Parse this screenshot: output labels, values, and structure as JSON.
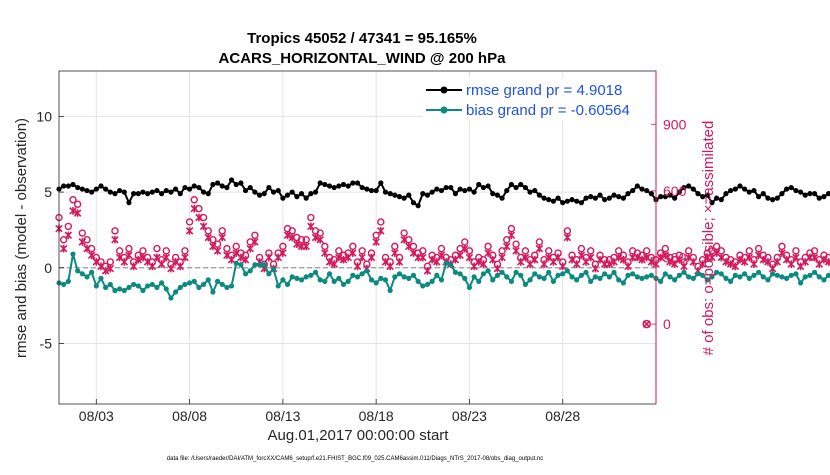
{
  "chart_data": {
    "type": "line",
    "title": "Tropics 45052 / 47341 = 95.165%",
    "subtitle": "ACARS_HORIZONTAL_WIND @ 200 hPa",
    "xlabel": "Aug.01,2017 00:00:00 start",
    "ylabel": "rmse and bias (model - observation)",
    "ylabel_right": "# of obs: o=possible; ×=assimilated",
    "xlim": [
      0,
      32
    ],
    "ylim": [
      -9,
      13
    ],
    "ylim_right": [
      -360,
      1140
    ],
    "x_ticks": [
      {
        "value": 2,
        "label": "08/03"
      },
      {
        "value": 7,
        "label": "08/08"
      },
      {
        "value": 12,
        "label": "08/13"
      },
      {
        "value": 17,
        "label": "08/18"
      },
      {
        "value": 22,
        "label": "08/23"
      },
      {
        "value": 27,
        "label": "08/28"
      }
    ],
    "y_ticks": [
      {
        "value": -5,
        "label": "-5"
      },
      {
        "value": 0,
        "label": "0"
      },
      {
        "value": 5,
        "label": "5"
      },
      {
        "value": 10,
        "label": "10"
      }
    ],
    "y_ticks_right": [
      {
        "value": 0,
        "label": "0"
      },
      {
        "value": 300,
        "label": "300"
      },
      {
        "value": 600,
        "label": "600"
      },
      {
        "value": 900,
        "label": "900"
      }
    ],
    "zero_line": 0,
    "legend_position": "top-right",
    "series": [
      {
        "name": "rmse grand pr = 4.9018",
        "axis": "left",
        "color": "#000000",
        "x0": 0.0,
        "dx": 0.25,
        "values": [
          5.2,
          5.4,
          5.4,
          5.5,
          5.3,
          5.2,
          5.1,
          5.0,
          5.2,
          5.4,
          5.2,
          5.0,
          4.9,
          5.1,
          5.0,
          4.3,
          4.9,
          4.9,
          5.0,
          4.9,
          5.0,
          5.1,
          4.9,
          5.1,
          5.0,
          5.2,
          4.9,
          5.3,
          5.2,
          5.4,
          5.3,
          5.0,
          4.9,
          5.5,
          5.6,
          5.4,
          5.3,
          5.8,
          5.5,
          5.6,
          5.1,
          5.3,
          5.0,
          4.8,
          4.9,
          5.3,
          5.0,
          5.1,
          4.6,
          4.8,
          5.0,
          4.7,
          4.9,
          4.6,
          4.9,
          5.0,
          5.6,
          5.5,
          5.4,
          5.3,
          5.4,
          5.5,
          5.4,
          5.6,
          5.6,
          5.3,
          5.2,
          5.1,
          5.1,
          5.6,
          5.0,
          4.9,
          4.8,
          4.7,
          4.6,
          4.8,
          4.3,
          4.1,
          4.9,
          4.8,
          5.0,
          5.2,
          5.1,
          5.3,
          5.3,
          4.9,
          5.2,
          5.1,
          5.2,
          5.0,
          5.5,
          5.3,
          5.4,
          4.9,
          4.8,
          4.6,
          5.1,
          5.5,
          5.3,
          5.5,
          5.3,
          5.0,
          5.1,
          4.8,
          4.6,
          4.5,
          4.4,
          4.6,
          4.3,
          4.4,
          4.5,
          4.4,
          4.3,
          4.6,
          4.7,
          4.6,
          4.8,
          4.5,
          4.6,
          4.8,
          4.7,
          4.6,
          4.9,
          5.1,
          5.4,
          5.2,
          5.1,
          4.9,
          4.5,
          4.7,
          4.7,
          4.8,
          4.6,
          5.0,
          5.3,
          5.4,
          5.2,
          4.9,
          4.7,
          4.8,
          4.3,
          4.6,
          4.5,
          4.9,
          5.1,
          5.2,
          5.4,
          5.2,
          5.0,
          5.1,
          4.7,
          4.9,
          4.6,
          4.5,
          4.6,
          4.9,
          5.2,
          5.3,
          5.1,
          5.0,
          4.8,
          4.9,
          4.9,
          4.6,
          4.7,
          4.9,
          5.0,
          5.2,
          5.1,
          4.9,
          4.8,
          5.0,
          5.1,
          4.7,
          4.9,
          4.8,
          4.6,
          4.8,
          5.2,
          5.4,
          4.9,
          4.8,
          4.7,
          5.0,
          5.1,
          4.9,
          5.0,
          4.8,
          5.2,
          5.1,
          4.9,
          5.0,
          5.2,
          5.1,
          5.2,
          5.1,
          4.9,
          4.8,
          5.0,
          4.9,
          4.8,
          4.9,
          5.0,
          5.1,
          5.0,
          5.1,
          5.2,
          5.0,
          5.1,
          4.9,
          4.8,
          4.9,
          5.0,
          5.1,
          5.1,
          4.9,
          5.1,
          5.0,
          5.2,
          5.1,
          4.9,
          5.1,
          5.0,
          4.9,
          4.8,
          5.1,
          5.0,
          5.1,
          4.9,
          5.2,
          4.9,
          5.1,
          5.0,
          4.9,
          5.1,
          5.0,
          4.9,
          4.9,
          5.2,
          5.0,
          4.8,
          5.1,
          5.0,
          4.9,
          5.0,
          4.8,
          4.9,
          5.0,
          5.2,
          5.1,
          4.9,
          5.0,
          4.8,
          4.9,
          5.1,
          5.0,
          4.9,
          5.1,
          5.0,
          4.9,
          5.0,
          5.2
        ]
      },
      {
        "name": "bias grand pr = -0.60564",
        "axis": "left",
        "color": "#0b8a80",
        "x0": 0.0,
        "dx": 0.25,
        "values": [
          -1.0,
          -1.1,
          -0.9,
          0.9,
          -0.2,
          -0.4,
          -0.6,
          -0.3,
          -1.2,
          -0.7,
          -1.3,
          -1.1,
          -1.5,
          -1.4,
          -1.5,
          -1.3,
          -1.1,
          -1.2,
          -1.5,
          -1.2,
          -1.1,
          -1.3,
          -1.0,
          -1.4,
          -2.0,
          -1.6,
          -1.3,
          -1.1,
          -1.0,
          -0.9,
          -1.3,
          -1.1,
          -0.8,
          -1.6,
          -0.9,
          -1.1,
          -1.3,
          -1.2,
          0.3,
          0.2,
          -0.4,
          -0.2,
          0.2,
          0.2,
          0.2,
          -0.4,
          -0.1,
          -1.2,
          -0.8,
          -1.1,
          -0.6,
          -0.7,
          -0.8,
          -0.6,
          -0.5,
          -0.3,
          -0.8,
          -0.9,
          -0.4,
          -0.9,
          -0.7,
          -1.1,
          -0.9,
          -0.5,
          -0.6,
          -0.4,
          -0.2,
          -0.8,
          -1.0,
          -0.7,
          -0.8,
          -1.5,
          -0.6,
          -0.4,
          -0.6,
          -0.7,
          -0.5,
          -0.9,
          -1.2,
          -1.1,
          -0.9,
          -0.5,
          -0.8,
          0.3,
          0.2,
          -0.3,
          -0.4,
          -0.7,
          -1.3,
          -0.6,
          -0.9,
          -0.4,
          -0.2,
          -0.8,
          -0.5,
          -0.3,
          -0.6,
          -0.9,
          -0.3,
          -0.5,
          -1.1,
          -0.8,
          -0.4,
          -0.6,
          -0.7,
          -0.3,
          -0.9,
          -0.5,
          -0.4,
          -0.2,
          -0.6,
          -0.8,
          -0.5,
          -0.3,
          -0.9,
          -0.6,
          -0.7,
          -0.4,
          -0.6,
          -0.3,
          -0.8,
          -1.0,
          -0.5,
          -0.4,
          -0.6,
          -0.7,
          -0.6,
          -0.5,
          -0.7,
          -0.9,
          -0.4,
          -0.6,
          -0.8,
          -0.5,
          -0.3,
          -0.6,
          -0.7,
          -0.4,
          -0.5,
          -0.8,
          -0.6,
          -0.3,
          -0.4,
          -0.7,
          -0.9,
          -0.5,
          -0.6,
          -0.4,
          -0.7,
          -0.5,
          -0.3,
          -0.6,
          -0.8,
          -0.4,
          -0.5,
          -0.6,
          -0.7,
          -0.5,
          -0.4,
          -1.0,
          -0.6,
          -0.5,
          -0.3,
          -0.6,
          -0.8,
          -0.5,
          -0.7,
          -0.4,
          -0.9,
          -0.5,
          -0.6,
          -0.4,
          -0.7,
          -0.8,
          -0.5,
          -0.6,
          -0.3,
          -0.7,
          -0.5,
          -0.6,
          -0.4,
          -0.9,
          -0.5,
          -0.6,
          -0.8,
          -0.4,
          -0.5,
          -0.7,
          -0.6,
          -0.3,
          -0.5,
          -0.8,
          -0.6,
          -0.4,
          -0.7,
          -0.5,
          -0.6,
          -0.8,
          -0.4,
          -0.3,
          -0.6,
          -0.7,
          -0.5,
          -0.4,
          -0.9,
          -0.6,
          -0.5,
          -0.3,
          -0.7,
          -0.6,
          -0.4,
          -0.8,
          -0.5,
          -0.6,
          -0.7,
          -0.4,
          -0.5,
          -0.6,
          -0.3,
          -0.7,
          -0.6,
          -0.5,
          -0.4,
          -0.8,
          -0.6,
          -0.5,
          -0.7,
          -0.4,
          -0.5,
          -0.6,
          -0.7,
          -0.5,
          -0.3,
          -0.6,
          -0.8,
          -0.5,
          -0.4,
          -0.6,
          -0.5,
          -0.7,
          -0.4,
          -0.6,
          -0.5,
          -0.3,
          -0.6,
          -0.7,
          -0.5,
          -0.4,
          -0.6,
          -0.5,
          -0.7,
          -0.4,
          -0.6,
          -0.5,
          -0.3,
          -0.6
        ]
      },
      {
        "name": "# of obs possible",
        "axis": "right",
        "color": "#d21a5c",
        "marker": "o",
        "x0": 0.0,
        "dx": 0.25,
        "values": [
          480,
          380,
          440,
          560,
          540,
          410,
          380,
          340,
          300,
          280,
          260,
          280,
          420,
          330,
          300,
          340,
          280,
          310,
          330,
          300,
          280,
          340,
          290,
          330,
          270,
          300,
          280,
          330,
          460,
          560,
          520,
          480,
          420,
          380,
          360,
          420,
          340,
          310,
          350,
          320,
          310,
          370,
          400,
          300,
          270,
          320,
          270,
          320,
          350,
          430,
          420,
          390,
          380,
          380,
          480,
          420,
          410,
          350,
          300,
          290,
          330,
          310,
          320,
          350,
          280,
          330,
          270,
          320,
          400,
          460,
          300,
          280,
          350,
          300,
          410,
          380,
          350,
          320,
          330,
          260,
          310,
          300,
          340,
          300,
          290,
          310,
          340,
          370,
          330,
          280,
          300,
          290,
          350,
          310,
          270,
          330,
          380,
          430,
          360,
          300,
          330,
          290,
          310,
          370,
          290,
          330,
          300,
          320,
          280,
          420,
          310,
          290,
          340,
          300,
          330,
          270,
          310,
          290,
          290,
          300,
          330,
          310,
          280,
          330,
          320,
          310,
          330,
          300,
          290,
          320,
          340,
          300,
          290,
          310,
          280,
          330,
          300,
          260,
          290,
          320,
          330,
          350,
          330,
          300,
          290,
          280,
          310,
          300,
          330,
          290,
          340,
          310,
          300,
          270,
          300,
          350,
          310,
          290,
          330,
          280,
          300,
          320,
          330,
          290,
          310,
          300,
          270,
          320,
          310,
          290,
          330,
          300,
          350,
          310,
          290,
          320,
          280,
          330,
          300,
          310,
          290,
          330,
          300,
          280,
          310,
          300,
          290,
          320,
          310,
          330,
          300,
          290,
          310,
          280,
          330,
          300,
          290,
          310,
          300,
          330,
          310,
          290,
          320,
          280,
          300,
          310,
          330,
          290,
          300,
          310,
          330,
          300,
          280,
          320,
          290,
          310,
          300,
          330,
          300,
          290,
          320,
          310,
          300,
          280,
          330,
          310,
          300,
          290,
          310,
          330,
          290,
          300,
          320,
          310,
          300,
          290,
          330,
          310,
          300,
          290,
          320,
          300
        ]
      },
      {
        "name": "# of obs assimilated",
        "axis": "right",
        "color": "#d21a5c",
        "marker": "x",
        "x0": 0.0,
        "dx": 0.25,
        "values": [
          430,
          340,
          400,
          510,
          500,
          370,
          340,
          310,
          280,
          260,
          240,
          250,
          380,
          300,
          280,
          310,
          260,
          290,
          300,
          280,
          260,
          300,
          270,
          300,
          250,
          280,
          260,
          300,
          420,
          520,
          480,
          440,
          390,
          350,
          330,
          390,
          310,
          290,
          320,
          300,
          290,
          340,
          370,
          280,
          250,
          300,
          250,
          300,
          320,
          400,
          390,
          360,
          350,
          350,
          440,
          390,
          380,
          320,
          280,
          270,
          300,
          290,
          300,
          320,
          260,
          300,
          250,
          300,
          370,
          420,
          280,
          260,
          320,
          280,
          380,
          350,
          320,
          300,
          300,
          240,
          290,
          280,
          310,
          280,
          270,
          290,
          310,
          340,
          300,
          260,
          280,
          270,
          320,
          290,
          250,
          300,
          350,
          400,
          330,
          280,
          300,
          270,
          290,
          340,
          270,
          300,
          280,
          300,
          260,
          390,
          290,
          270,
          310,
          280,
          300,
          250,
          290,
          270,
          270,
          280,
          300,
          290,
          260,
          300,
          300,
          290,
          300,
          280,
          270,
          300,
          310,
          280,
          270,
          290,
          260,
          300,
          280,
          240,
          270,
          300,
          300,
          320,
          300,
          280,
          270,
          260,
          290,
          280,
          300,
          270,
          310,
          290,
          280,
          250,
          280,
          320,
          290,
          270,
          300,
          260,
          280,
          300,
          300,
          270,
          290,
          280,
          250,
          300,
          290,
          270,
          300,
          280,
          320,
          290,
          270,
          300,
          260,
          300,
          280,
          290,
          270,
          300,
          280,
          260,
          290,
          280,
          270,
          300,
          290,
          300,
          280,
          270,
          290,
          260,
          300,
          280,
          270,
          290,
          280,
          300,
          290,
          270,
          300,
          260,
          280,
          290,
          300,
          270,
          280,
          290,
          300,
          280,
          260,
          300,
          270,
          290,
          280,
          300,
          280,
          270,
          300,
          290,
          280,
          260,
          300,
          290,
          280,
          270,
          290,
          300,
          270,
          280,
          300,
          290,
          280,
          270,
          300,
          290,
          280,
          270,
          300,
          280
        ]
      }
    ],
    "extra_points": [
      {
        "x": 31.5,
        "y_right": 0,
        "marker": "o",
        "series": "possible"
      },
      {
        "x": 31.5,
        "y_right": 0,
        "marker": "x",
        "series": "assimilated"
      }
    ],
    "footer": "data file: /Users/raeder/DAI/ATM_forcXX/CAM6_setup/f.e21.FHIST_BGC.f09_025.CAM6assim.011/Diags_NTrS_2017-08/obs_diag_output.nc"
  }
}
